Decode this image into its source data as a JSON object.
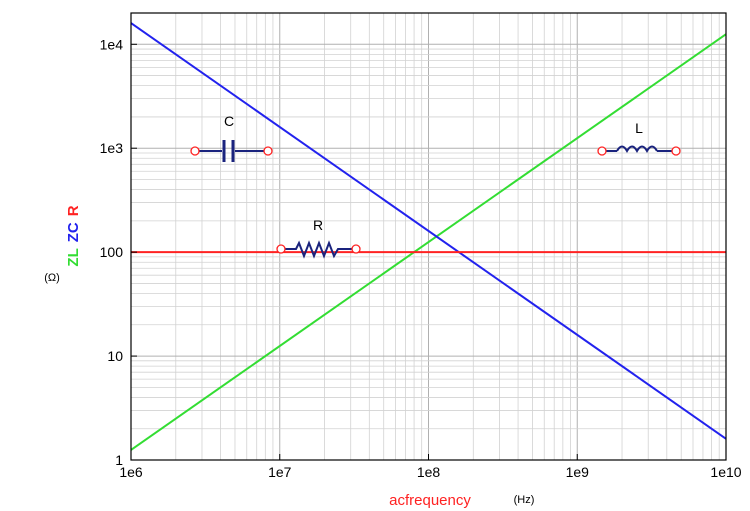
{
  "chart_data": {
    "type": "line",
    "x_scale": "log",
    "y_scale": "log",
    "xlim": [
      1000000,
      10000000000
    ],
    "ylim": [
      1,
      20000
    ],
    "grid": true,
    "x_ticks": [
      {
        "value": 1000000,
        "label": "1e6"
      },
      {
        "value": 10000000,
        "label": "1e7"
      },
      {
        "value": 100000000,
        "label": "1e8"
      },
      {
        "value": 1000000000,
        "label": "1e9"
      },
      {
        "value": 10000000000,
        "label": "1e10"
      }
    ],
    "y_ticks": [
      {
        "value": 1,
        "label": "1"
      },
      {
        "value": 10,
        "label": "10"
      },
      {
        "value": 100,
        "label": "100"
      },
      {
        "value": 1000,
        "label": "1e3"
      },
      {
        "value": 10000,
        "label": "1e4"
      }
    ],
    "xlabel": "acfrequency",
    "xunit": "(Hz)",
    "ylabels": [
      {
        "text": "ZL",
        "color": "#33dd33"
      },
      {
        "text": "ZC",
        "color": "#2222ee"
      },
      {
        "text": "R",
        "color": "#ff2222"
      }
    ],
    "yunit": "(Ω)",
    "series": [
      {
        "name": "ZL",
        "color": "#33dd33",
        "x": [
          1000000,
          10000000000
        ],
        "y": [
          1.25,
          12500
        ]
      },
      {
        "name": "ZC",
        "color": "#2222ee",
        "x": [
          1000000,
          10000000000
        ],
        "y": [
          16000,
          1.6
        ]
      },
      {
        "name": "R",
        "color": "#ff2222",
        "x": [
          1000000,
          10000000000
        ],
        "y": [
          100,
          100
        ]
      }
    ],
    "component_labels": {
      "capacitor": "C",
      "inductor": "L",
      "resistor": "R"
    }
  }
}
